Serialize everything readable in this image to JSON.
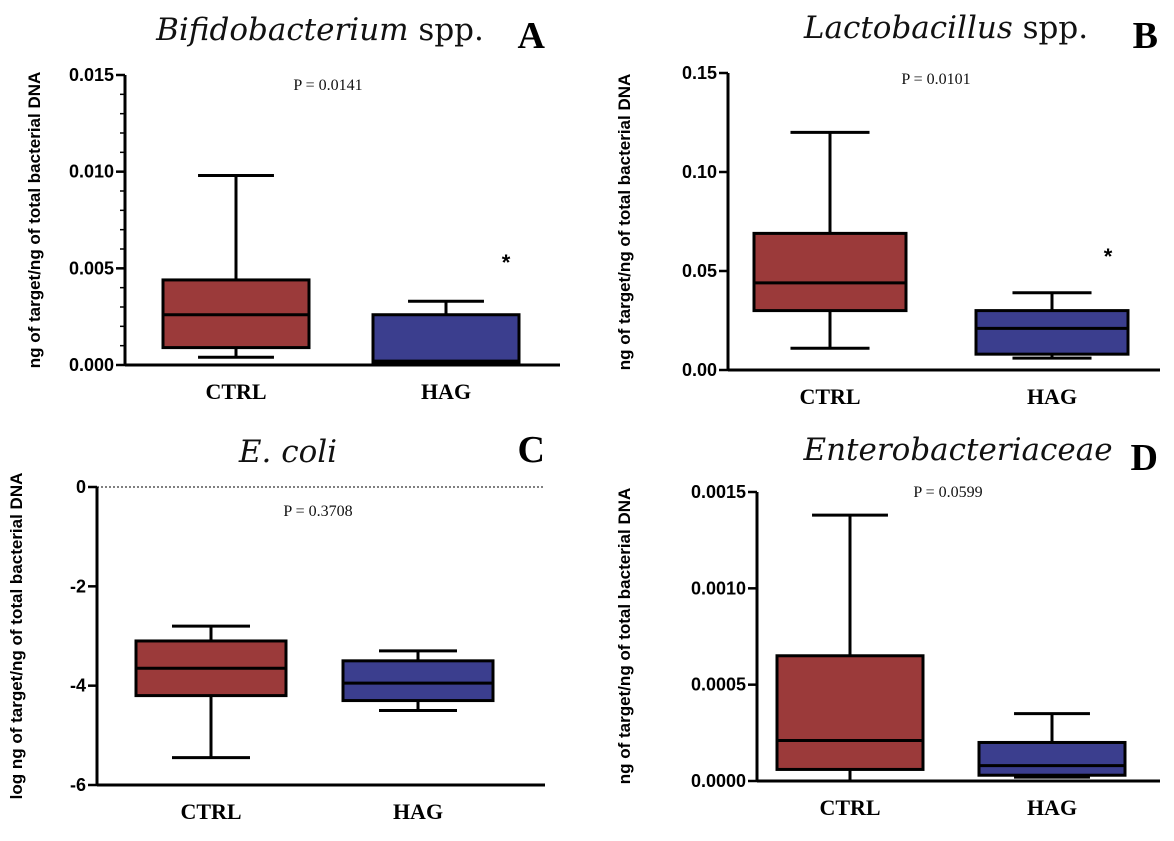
{
  "chart_data": [
    {
      "id": "A",
      "type": "box",
      "title": "Bifidobacterium",
      "title_suffix": "spp.",
      "panel_letter": "A",
      "pvalue": "P = 0.0141",
      "ylabel": "ng of target/ng of total bacterial DNA",
      "ylim": [
        0,
        0.015
      ],
      "yticks": [
        0.0,
        0.005,
        0.01,
        0.015
      ],
      "ytick_labels": [
        "0.000",
        "0.005",
        "0.010",
        "0.015"
      ],
      "minor_ticks": 5,
      "categories": [
        "CTRL",
        "HAG"
      ],
      "boxes": [
        {
          "name": "CTRL",
          "min": 0.0004,
          "q1": 0.0009,
          "median": 0.0026,
          "q3": 0.0044,
          "max": 0.0098,
          "color": "#9b3a3a",
          "star": false
        },
        {
          "name": "HAG",
          "min": 0.0,
          "q1": 0.0001,
          "median": 0.0002,
          "q3": 0.0026,
          "max": 0.0033,
          "color": "#3b3e8e",
          "star": true
        }
      ],
      "star_label": "*",
      "zero_line": false
    },
    {
      "id": "B",
      "type": "box",
      "title": "Lactobacillus",
      "title_suffix": "spp.",
      "panel_letter": "B",
      "pvalue": "P = 0.0101",
      "ylabel": "ng of target/ng of total bacterial DNA",
      "ylim": [
        0,
        0.15
      ],
      "yticks": [
        0.0,
        0.05,
        0.1,
        0.15
      ],
      "ytick_labels": [
        "0.00",
        "0.05",
        "0.10",
        "0.15"
      ],
      "minor_ticks": 0,
      "categories": [
        "CTRL",
        "HAG"
      ],
      "boxes": [
        {
          "name": "CTRL",
          "min": 0.011,
          "q1": 0.03,
          "median": 0.044,
          "q3": 0.069,
          "max": 0.12,
          "color": "#9b3a3a",
          "star": false
        },
        {
          "name": "HAG",
          "min": 0.006,
          "q1": 0.008,
          "median": 0.021,
          "q3": 0.03,
          "max": 0.039,
          "color": "#3b3e8e",
          "star": true
        }
      ],
      "star_label": "*",
      "zero_line": false
    },
    {
      "id": "C",
      "type": "box",
      "title": "E. coli",
      "title_suffix": "",
      "panel_letter": "C",
      "pvalue": "P = 0.3708",
      "ylabel": "log ng of target/ng of total bacterial DNA",
      "ylim": [
        -6,
        0
      ],
      "yticks": [
        -6,
        -4,
        -2,
        0
      ],
      "ytick_labels": [
        "-6",
        "-4",
        "-2",
        "0"
      ],
      "minor_ticks": 0,
      "categories": [
        "CTRL",
        "HAG"
      ],
      "boxes": [
        {
          "name": "CTRL",
          "min": -5.45,
          "q1": -4.2,
          "median": -3.65,
          "q3": -3.1,
          "max": -2.8,
          "color": "#9b3a3a",
          "star": false
        },
        {
          "name": "HAG",
          "min": -4.5,
          "q1": -4.3,
          "median": -3.95,
          "q3": -3.5,
          "max": -3.3,
          "color": "#3b3e8e",
          "star": false
        }
      ],
      "star_label": "",
      "zero_line": true
    },
    {
      "id": "D",
      "type": "box",
      "title": "Enterobacteriaceae",
      "title_suffix": "",
      "panel_letter": "D",
      "pvalue": "P = 0.0599",
      "ylabel": "ng of target/ng of total bacterial DNA",
      "ylim": [
        0,
        0.0015
      ],
      "yticks": [
        0.0,
        0.0005,
        0.001,
        0.0015
      ],
      "ytick_labels": [
        "0.0000",
        "0.0005",
        "0.0010",
        "0.0015"
      ],
      "minor_ticks": 0,
      "categories": [
        "CTRL",
        "HAG"
      ],
      "boxes": [
        {
          "name": "CTRL",
          "min": 0.0,
          "q1": 6e-05,
          "median": 0.00021,
          "q3": 0.00065,
          "max": 0.00138,
          "color": "#9b3a3a",
          "star": false
        },
        {
          "name": "HAG",
          "min": 2e-05,
          "q1": 3e-05,
          "median": 8e-05,
          "q3": 0.0002,
          "max": 0.00035,
          "color": "#3b3e8e",
          "star": false
        }
      ],
      "star_label": "",
      "zero_line": false
    }
  ]
}
